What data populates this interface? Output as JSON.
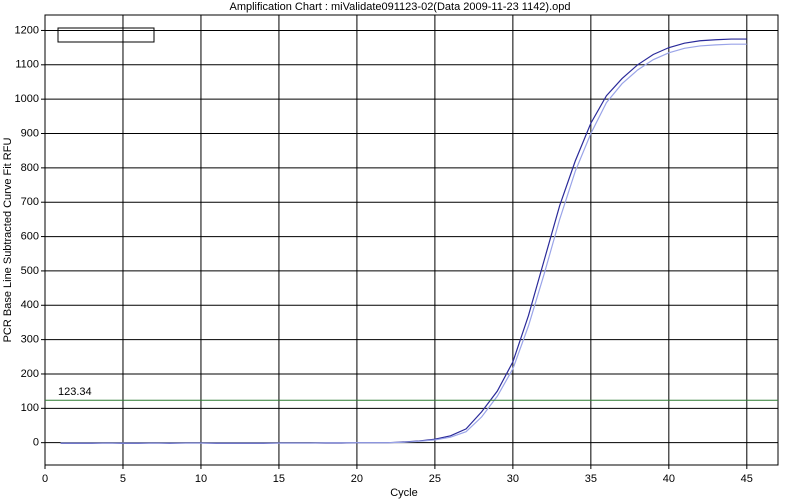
{
  "chart_data": {
    "type": "line",
    "title": "Amplification Chart : miValidate091123-02(Data 2009-11-23 1142).opd",
    "x_label": "Cycle",
    "y_label": "PCR Base Line Subtracted Curve Fit RFU",
    "x": [
      1,
      2,
      3,
      4,
      5,
      6,
      7,
      8,
      9,
      10,
      11,
      12,
      13,
      14,
      15,
      16,
      17,
      18,
      19,
      20,
      21,
      22,
      23,
      24,
      25,
      26,
      27,
      28,
      29,
      30,
      31,
      32,
      33,
      34,
      35,
      36,
      37,
      38,
      39,
      40,
      41,
      42,
      43,
      44,
      45
    ],
    "series": [
      {
        "color": "#2a2a9a",
        "values": [
          -2,
          -2,
          -2,
          -1,
          -2,
          -2,
          -1,
          -2,
          -1,
          -1,
          -2,
          -2,
          -2,
          -2,
          -1,
          -1,
          -1,
          -1,
          -1,
          0,
          0,
          0,
          2,
          5,
          10,
          20,
          40,
          90,
          150,
          235,
          370,
          530,
          690,
          820,
          930,
          1010,
          1060,
          1100,
          1130,
          1150,
          1163,
          1170,
          1173,
          1175,
          1175
        ]
      },
      {
        "color": "#9aa4e8",
        "values": [
          -1,
          -1,
          -1,
          -1,
          -1,
          -1,
          -1,
          -1,
          -1,
          -1,
          -1,
          -1,
          -1,
          -1,
          -1,
          -1,
          -1,
          0,
          0,
          0,
          0,
          0,
          1,
          4,
          8,
          16,
          32,
          75,
          135,
          215,
          340,
          490,
          650,
          790,
          900,
          990,
          1045,
          1085,
          1115,
          1135,
          1148,
          1155,
          1158,
          1160,
          1160
        ]
      }
    ],
    "threshold": 123.34,
    "threshold_color": "#2e7d32",
    "xlim": [
      0,
      47
    ],
    "xticks": [
      0,
      5,
      10,
      15,
      20,
      25,
      30,
      35,
      40,
      45
    ],
    "ylim": [
      -65,
      1245
    ],
    "yticks": [
      0,
      100,
      200,
      300,
      400,
      500,
      600,
      700,
      800,
      900,
      1000,
      1100,
      1200
    ],
    "grid": true
  }
}
